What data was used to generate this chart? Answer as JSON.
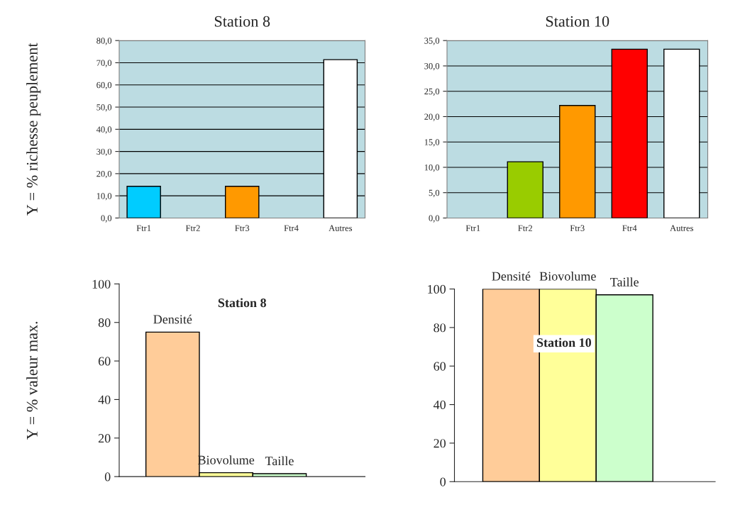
{
  "chart_data": [
    {
      "type": "bar",
      "title": "Station 8",
      "ylabel": "Y = % richesse peuplement",
      "categories": [
        "Ftr1",
        "Ftr2",
        "Ftr3",
        "Ftr4",
        "Autres"
      ],
      "values": [
        14.3,
        0,
        14.3,
        0,
        71.4
      ],
      "colors": [
        "#00ccff",
        null,
        "#ff9900",
        null,
        "#ffffff"
      ],
      "ylim": [
        0,
        80
      ],
      "yticks": [
        {
          "value": 0,
          "label": "0,0"
        },
        {
          "value": 10,
          "label": "10,0"
        },
        {
          "value": 20,
          "label": "20,0"
        },
        {
          "value": 30,
          "label": "30,0"
        },
        {
          "value": 40,
          "label": "40,0"
        },
        {
          "value": 50,
          "label": "50,0"
        },
        {
          "value": 60,
          "label": "60,0"
        },
        {
          "value": 70,
          "label": "70,0"
        },
        {
          "value": 80,
          "label": "80,0"
        }
      ],
      "grid": "y"
    },
    {
      "type": "bar",
      "title": "Station 10",
      "categories": [
        "Ftr1",
        "Ftr2",
        "Ftr3",
        "Ftr4",
        "Autres"
      ],
      "values": [
        0,
        11.1,
        22.2,
        33.3,
        33.3
      ],
      "colors": [
        null,
        "#99cc00",
        "#ff9900",
        "#ff0000",
        "#ffffff"
      ],
      "ylim": [
        0,
        35
      ],
      "yticks": [
        {
          "value": 0,
          "label": "0,0"
        },
        {
          "value": 5,
          "label": "5,0"
        },
        {
          "value": 10,
          "label": "10,0"
        },
        {
          "value": 15,
          "label": "15,0"
        },
        {
          "value": 20,
          "label": "20,0"
        },
        {
          "value": 25,
          "label": "25,0"
        },
        {
          "value": 30,
          "label": "30,0"
        },
        {
          "value": 35,
          "label": "35,0"
        }
      ],
      "grid": "y"
    },
    {
      "type": "bar",
      "ylabel": "Y = % valeur max.",
      "categories": [
        "Densité",
        "Biovolume",
        "Taille"
      ],
      "values": [
        75,
        2,
        1.5
      ],
      "colors": [
        "#ffcc99",
        "#ffff99",
        "#ccffcc"
      ],
      "ylim": [
        0,
        100
      ],
      "yticks": [
        0,
        20,
        40,
        60,
        80,
        100
      ],
      "annotations": [
        "Station 8"
      ]
    },
    {
      "type": "bar",
      "categories": [
        "Densité",
        "Biovolume",
        "Taille"
      ],
      "values": [
        100,
        100,
        97
      ],
      "colors": [
        "#ffcc99",
        "#ffff99",
        "#ccffcc"
      ],
      "ylim": [
        0,
        100
      ],
      "yticks": [
        0,
        20,
        40,
        60,
        80,
        100
      ],
      "annotations": [
        "Station 10"
      ]
    }
  ]
}
